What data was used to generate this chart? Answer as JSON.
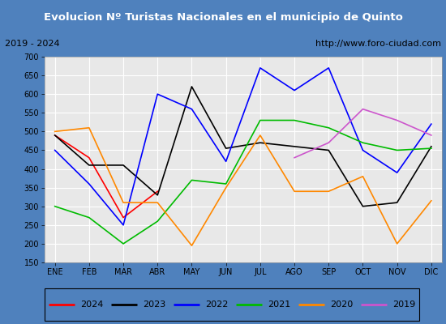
{
  "title": "Evolucion Nº Turistas Nacionales en el municipio de Quinto",
  "subtitle_left": "2019 - 2024",
  "subtitle_right": "http://www.foro-ciudad.com",
  "x_labels": [
    "ENE",
    "FEB",
    "MAR",
    "ABR",
    "MAY",
    "JUN",
    "JUL",
    "AGO",
    "SEP",
    "OCT",
    "NOV",
    "DIC"
  ],
  "ylim": [
    150,
    700
  ],
  "yticks": [
    150,
    200,
    250,
    300,
    350,
    400,
    450,
    500,
    550,
    600,
    650,
    700
  ],
  "series": {
    "2024": {
      "color": "#ff0000",
      "values": [
        490,
        430,
        270,
        340,
        null,
        null,
        null,
        null,
        null,
        null,
        null,
        null
      ]
    },
    "2023": {
      "color": "#000000",
      "values": [
        490,
        410,
        410,
        330,
        620,
        455,
        470,
        460,
        450,
        300,
        310,
        460
      ]
    },
    "2022": {
      "color": "#0000ff",
      "values": [
        450,
        360,
        250,
        600,
        560,
        420,
        670,
        610,
        670,
        450,
        390,
        520
      ]
    },
    "2021": {
      "color": "#00bb00",
      "values": [
        300,
        270,
        200,
        260,
        370,
        360,
        530,
        530,
        510,
        470,
        450,
        455
      ]
    },
    "2020": {
      "color": "#ff8800",
      "values": [
        500,
        510,
        310,
        310,
        195,
        350,
        490,
        340,
        340,
        380,
        200,
        315
      ]
    },
    "2019": {
      "color": "#cc55cc",
      "values": [
        null,
        null,
        null,
        null,
        null,
        null,
        null,
        430,
        470,
        560,
        530,
        490
      ]
    }
  },
  "legend_order": [
    "2024",
    "2023",
    "2022",
    "2021",
    "2020",
    "2019"
  ],
  "title_bg": "#4f81bd",
  "title_color": "#ffffff",
  "plot_bg": "#e8e8e8",
  "grid_color": "#ffffff"
}
